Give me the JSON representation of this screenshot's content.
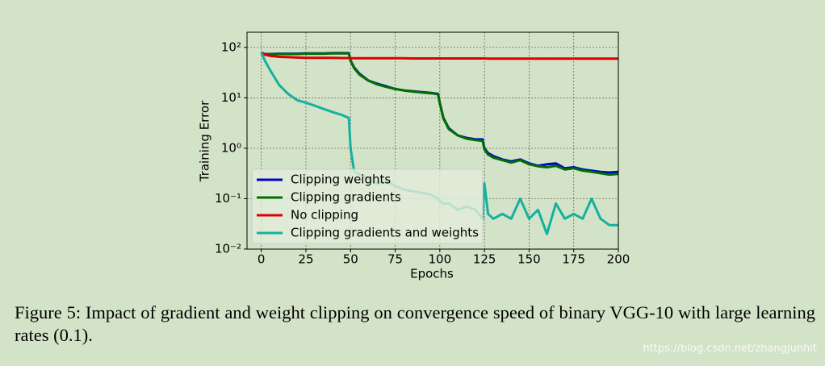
{
  "chart_data": {
    "type": "line",
    "xlabel": "Epochs",
    "ylabel": "Training Error",
    "x": [
      0,
      2,
      5,
      10,
      15,
      20,
      25,
      30,
      35,
      40,
      45,
      49,
      50,
      52,
      55,
      60,
      65,
      70,
      75,
      80,
      85,
      90,
      95,
      99,
      100,
      102,
      105,
      110,
      115,
      120,
      124,
      125,
      127,
      130,
      135,
      140,
      145,
      150,
      155,
      160,
      165,
      170,
      175,
      180,
      185,
      190,
      195,
      200
    ],
    "series": [
      {
        "name": "Clipping weights",
        "color": "#0000cc",
        "values": [
          75,
          74,
          74,
          75,
          75,
          75,
          76,
          76,
          76,
          77,
          77,
          77,
          55,
          40,
          30,
          22,
          19,
          17,
          15,
          14,
          13.5,
          13,
          12.5,
          12,
          8,
          4,
          2.5,
          1.8,
          1.6,
          1.5,
          1.5,
          1.0,
          0.8,
          0.7,
          0.6,
          0.55,
          0.6,
          0.5,
          0.45,
          0.48,
          0.5,
          0.4,
          0.42,
          0.38,
          0.36,
          0.34,
          0.33,
          0.34
        ]
      },
      {
        "name": "Clipping gradients",
        "color": "#007000",
        "values": [
          80,
          73,
          73,
          74,
          74,
          74,
          75,
          75,
          75,
          76,
          76,
          76,
          54,
          39,
          29,
          22,
          18.5,
          16.5,
          15,
          14,
          13.3,
          12.8,
          12.3,
          11.8,
          7.8,
          3.9,
          2.4,
          1.8,
          1.55,
          1.45,
          1.4,
          0.95,
          0.75,
          0.65,
          0.58,
          0.52,
          0.58,
          0.48,
          0.44,
          0.42,
          0.45,
          0.38,
          0.4,
          0.36,
          0.34,
          0.32,
          0.3,
          0.31
        ]
      },
      {
        "name": "No clipping",
        "color": "#dd0000",
        "values": [
          80,
          72,
          68,
          65,
          64,
          63,
          62,
          62,
          62,
          62,
          61.5,
          61.5,
          61,
          61,
          61,
          61,
          61,
          61,
          61,
          61,
          60.5,
          60.5,
          60.5,
          60.5,
          60.5,
          60.5,
          60.5,
          60.5,
          60.5,
          60.5,
          60.5,
          60.5,
          60,
          60,
          60,
          60,
          60,
          60,
          60,
          60,
          60,
          60,
          60,
          60,
          60,
          60,
          60,
          60
        ]
      },
      {
        "name": "Clipping gradients and weights",
        "color": "#14b0a0",
        "values": [
          80,
          55,
          35,
          18,
          12,
          9,
          8,
          7,
          6,
          5.2,
          4.6,
          4,
          1.0,
          0.35,
          0.3,
          0.25,
          0.2,
          0.22,
          0.18,
          0.15,
          0.14,
          0.13,
          0.12,
          0.1,
          0.09,
          0.08,
          0.08,
          0.06,
          0.07,
          0.06,
          0.04,
          0.2,
          0.05,
          0.04,
          0.05,
          0.04,
          0.1,
          0.04,
          0.06,
          0.02,
          0.08,
          0.04,
          0.05,
          0.04,
          0.1,
          0.04,
          0.03,
          0.03
        ]
      }
    ],
    "xlim": [
      -8,
      200
    ],
    "xticks": [
      0,
      25,
      50,
      75,
      100,
      125,
      150,
      175,
      200
    ],
    "ylim": [
      0.01,
      200
    ],
    "yticks": [
      {
        "value": 100,
        "label": "10²"
      },
      {
        "value": 10,
        "label": "10¹"
      },
      {
        "value": 1,
        "label": "10⁰"
      },
      {
        "value": 0.1,
        "label": "10⁻¹"
      },
      {
        "value": 0.01,
        "label": "10⁻²"
      }
    ],
    "log_y": true,
    "grid": true,
    "legend": "lower left"
  },
  "caption": "Figure 5: Impact of gradient and weight clipping on convergence speed of binary VGG-10 with large learning rates (0.1).",
  "watermark": "https://blog.csdn.net/zhangjunhit"
}
